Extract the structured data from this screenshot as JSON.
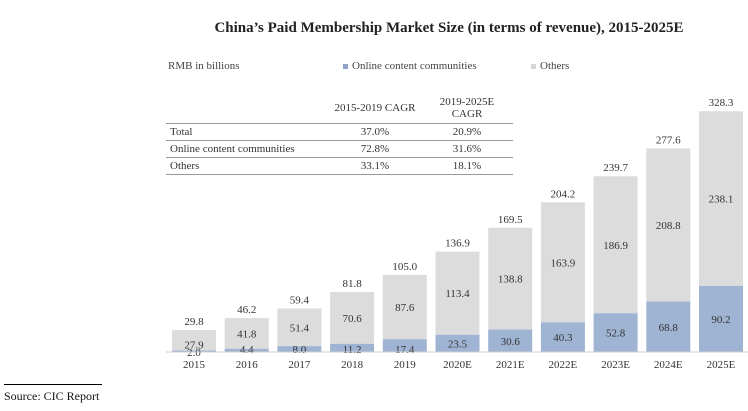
{
  "chart_data": {
    "type": "bar",
    "stacked": true,
    "title": "China’s Paid Membership Market Size (in terms of revenue), 2015-2025E",
    "unit_label": "RMB in billions",
    "xlabel": "",
    "ylabel": "",
    "categories": [
      "2015",
      "2016",
      "2017",
      "2018",
      "2019",
      "2020E",
      "2021E",
      "2022E",
      "2023E",
      "2024E",
      "2025E"
    ],
    "series": [
      {
        "name": "Online content communities",
        "color": "#9fb3d3",
        "values": [
          2.0,
          4.4,
          8.0,
          11.2,
          17.4,
          23.5,
          30.6,
          40.3,
          52.8,
          68.8,
          90.2
        ]
      },
      {
        "name": "Others",
        "color": "#dcdcdc",
        "values": [
          27.9,
          41.8,
          51.4,
          70.6,
          87.6,
          113.4,
          138.8,
          163.9,
          186.9,
          208.8,
          238.1
        ]
      }
    ],
    "totals": [
      29.8,
      46.2,
      59.4,
      81.8,
      105.0,
      136.9,
      169.5,
      204.2,
      239.7,
      277.6,
      328.3
    ],
    "legend_position": "top",
    "grid": false,
    "ylim": [
      0,
      330
    ]
  },
  "cagr_table": {
    "headers": [
      "",
      "2015-2019 CAGR",
      "2019-2025E CAGR"
    ],
    "rows": [
      {
        "label": "Total",
        "c1": "37.0%",
        "c2": "20.9%"
      },
      {
        "label": "Online content communities",
        "c1": "72.8%",
        "c2": "31.6%"
      },
      {
        "label": "Others",
        "c1": "33.1%",
        "c2": "18.1%"
      }
    ]
  },
  "legend": {
    "online": "Online content communities",
    "others": "Others"
  },
  "source": "Source: CIC Report"
}
